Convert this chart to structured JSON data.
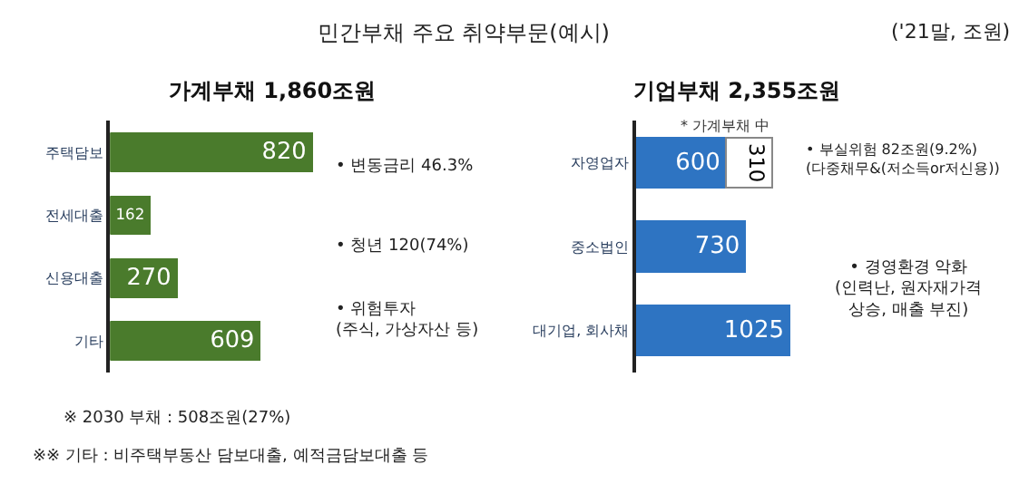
{
  "chart_data": [
    {
      "type": "bar",
      "orientation": "horizontal",
      "title": "가계부채 1,860조원",
      "categories": [
        "주택담보",
        "전세대출",
        "신용대출",
        "기타"
      ],
      "series": [
        {
          "color": "#4a7b2c",
          "values": [
            820,
            162,
            270,
            609
          ]
        }
      ],
      "data_labels": true,
      "legend": false,
      "tick_labels": "y",
      "annotations": [
        "민간부채 주요 취약부문(예시)",
        "('21말, 조원)",
        "• 변동금리 46.3%",
        "• 청년 120(74%)",
        "• 위험투자\n(주식, 가상자산 등)",
        "※ 2030 부채 : 508조원(27%)",
        "※※ 기타 : 비주택부동산 담보대출, 예적금담보대출 등"
      ]
    },
    {
      "type": "bar",
      "orientation": "horizontal",
      "stacked": true,
      "title": "기업부채 2,355조원",
      "categories": [
        "자영업자",
        "중소법인",
        "대기업, 회사채"
      ],
      "series": [
        {
          "color": "#2e74c2",
          "values": [
            600,
            730,
            1025
          ]
        },
        {
          "name": "* 가계부채 中",
          "color": "#ffffff",
          "values": [
            310,
            null,
            null
          ]
        }
      ],
      "data_labels": true,
      "legend": false,
      "tick_labels": "y",
      "annotations": [
        "• 부실위험 82조원(9.2%)\n(다중채무&(저소득or저신용))",
        "• 경영환경 악화\n(인력난, 원자재가격\n상승, 매출 부진)"
      ]
    }
  ]
}
